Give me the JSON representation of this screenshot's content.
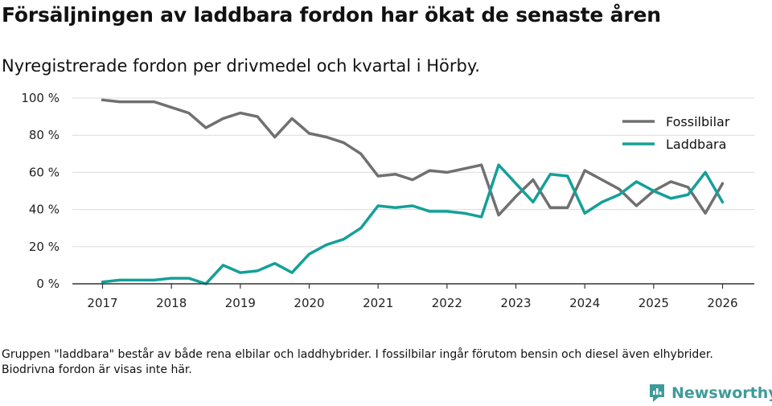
{
  "title": "Försäljningen av laddbara fordon har ökat de senaste åren",
  "subtitle": "Nyregistrerade fordon per drivmedel och kvartal i Hörby.",
  "note": "Gruppen \"laddbara\" består av både rena elbilar och laddhybrider. I fossilbilar ingår förutom bensin och diesel även elhybrider. Biodrivna fordon är visas inte här.",
  "brand": {
    "name": "Newsworthy",
    "icon": "newsworthy-logo-icon",
    "color": "#3f9b99"
  },
  "chart_data": {
    "type": "line",
    "title": "Försäljningen av laddbara fordon har ökat de senaste åren",
    "xlabel": "",
    "ylabel": "",
    "x_ticks": [
      "2017",
      "2018",
      "2019",
      "2020",
      "2021",
      "2022",
      "2023",
      "2024",
      "2025",
      "2026"
    ],
    "y_ticks": [
      "0 %",
      "20 %",
      "40 %",
      "60 %",
      "80 %",
      "100 %"
    ],
    "ylim": [
      0,
      100
    ],
    "xlim": [
      2017,
      2026
    ],
    "grid": true,
    "legend_position": "top-right",
    "series": [
      {
        "name": "Fossilbilar",
        "color": "#707070",
        "x": [
          2017.0,
          2017.25,
          2017.5,
          2017.75,
          2018.0,
          2018.25,
          2018.5,
          2018.75,
          2019.0,
          2019.25,
          2019.5,
          2019.75,
          2020.0,
          2020.25,
          2020.5,
          2020.75,
          2021.0,
          2021.25,
          2021.5,
          2021.75,
          2022.0,
          2022.25,
          2022.5,
          2022.75,
          2023.0,
          2023.25,
          2023.5,
          2023.75,
          2024.0,
          2024.25,
          2024.5,
          2024.75,
          2025.0,
          2025.25,
          2025.5,
          2025.75,
          2026.0
        ],
        "values": [
          99,
          98,
          98,
          98,
          95,
          92,
          84,
          89,
          92,
          90,
          79,
          89,
          81,
          79,
          76,
          70,
          58,
          59,
          56,
          61,
          60,
          62,
          64,
          37,
          47,
          56,
          41,
          41,
          61,
          56,
          51,
          42,
          50,
          55,
          52,
          38,
          54
        ]
      },
      {
        "name": "Laddbara",
        "color": "#14a098",
        "x": [
          2017.0,
          2017.25,
          2017.5,
          2017.75,
          2018.0,
          2018.25,
          2018.5,
          2018.75,
          2019.0,
          2019.25,
          2019.5,
          2019.75,
          2020.0,
          2020.25,
          2020.5,
          2020.75,
          2021.0,
          2021.25,
          2021.5,
          2021.75,
          2022.0,
          2022.25,
          2022.5,
          2022.75,
          2023.0,
          2023.25,
          2023.5,
          2023.75,
          2024.0,
          2024.25,
          2024.5,
          2024.75,
          2025.0,
          2025.25,
          2025.5,
          2025.75,
          2026.0
        ],
        "values": [
          1,
          2,
          2,
          2,
          3,
          3,
          0,
          10,
          6,
          7,
          11,
          6,
          16,
          21,
          24,
          30,
          42,
          41,
          42,
          39,
          39,
          38,
          36,
          64,
          54,
          44,
          59,
          58,
          38,
          44,
          48,
          55,
          50,
          46,
          48,
          60,
          44
        ]
      }
    ]
  }
}
